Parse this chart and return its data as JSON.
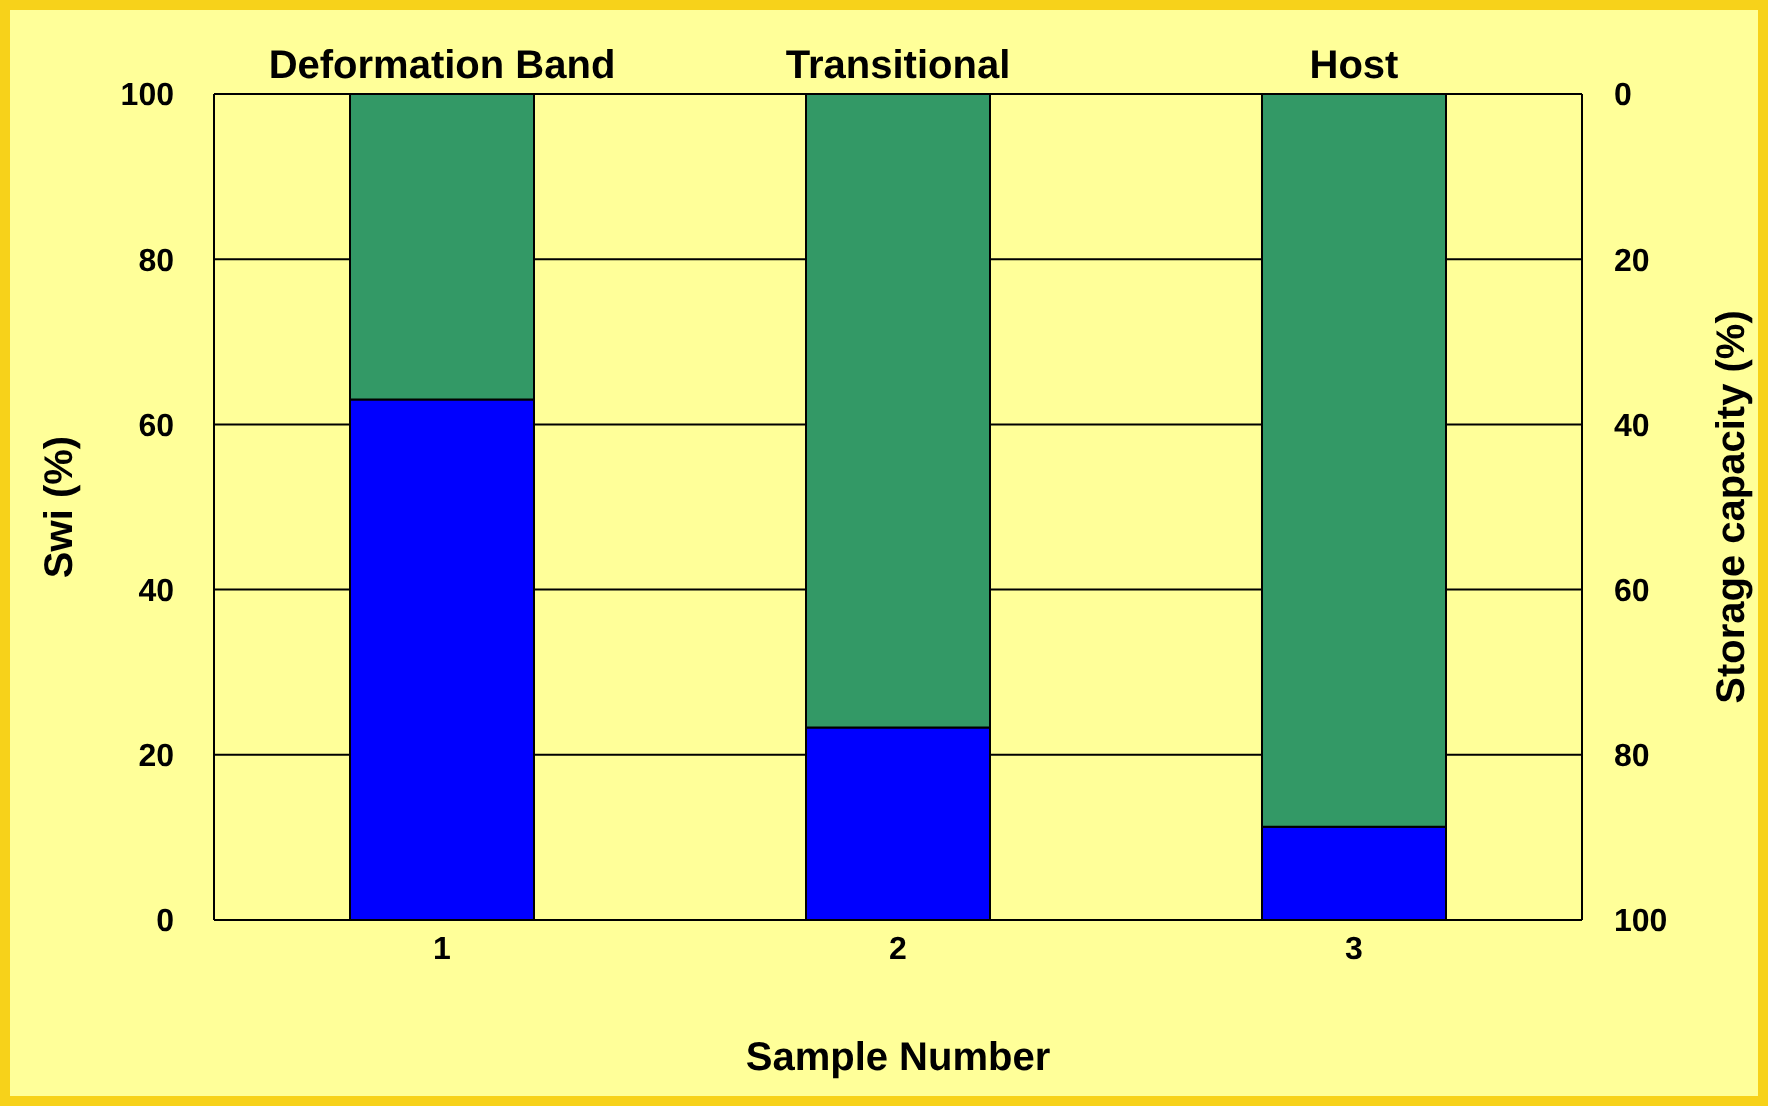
{
  "chart_data": {
    "type": "bar",
    "stacked": true,
    "categories": [
      "1",
      "2",
      "3"
    ],
    "series": [
      {
        "color": "#0000ff",
        "values": [
          63,
          23.3,
          11.3
        ]
      },
      {
        "color": "#339966",
        "values": [
          37,
          76.7,
          88.7
        ]
      }
    ],
    "xlabel": "Sample Number",
    "ylabel": "Swi (%)",
    "y2label": "Storage capacity (%)",
    "ylim": [
      0,
      100
    ],
    "yticks": [
      0,
      20,
      40,
      60,
      80,
      100
    ],
    "y2lim": [
      100,
      0
    ],
    "y2ticks": [
      0,
      20,
      40,
      60,
      80,
      100
    ],
    "grid": "y",
    "legend": false,
    "annotations": [
      {
        "text": "Deformation Band",
        "x": "1",
        "y": 100
      },
      {
        "text": "Transitional",
        "x": "2",
        "y": 100
      },
      {
        "text": "Host",
        "x": "3",
        "y": 100
      }
    ]
  }
}
